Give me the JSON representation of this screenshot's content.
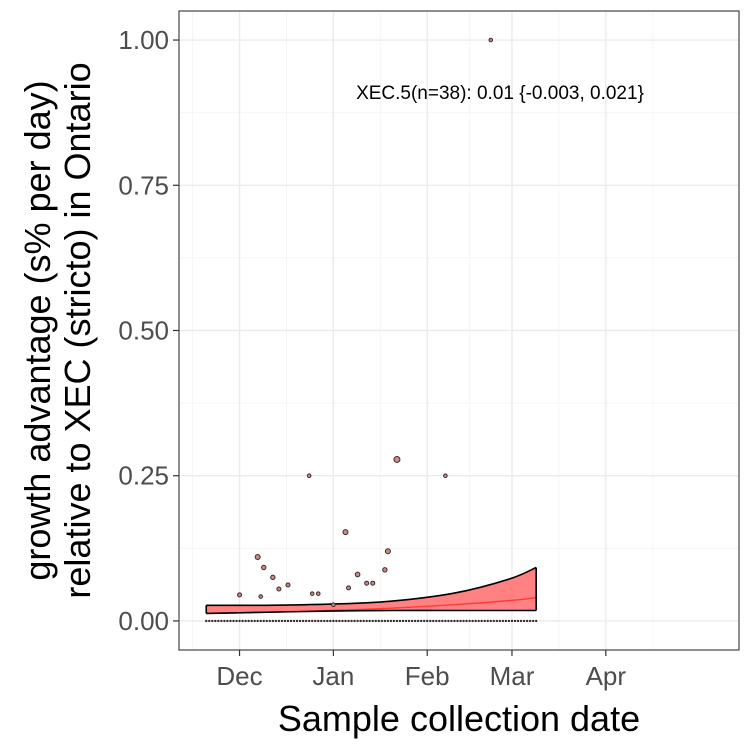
{
  "chart_data": {
    "type": "scatter",
    "xlabel": "Sample collection date",
    "ylabel_line1": "growth advantage (s% per day)",
    "ylabel_line2": "relative to XEC (stricto) in Ontario",
    "x_start_date": "2024-11-01",
    "xlim": [
      "2024-11-11",
      "2025-05-15"
    ],
    "ylim": [
      -0.05,
      1.05
    ],
    "x_ticks": [
      {
        "date": "2024-12-01",
        "label": "Dec"
      },
      {
        "date": "2025-01-01",
        "label": "Jan"
      },
      {
        "date": "2025-02-01",
        "label": "Feb"
      },
      {
        "date": "2025-03-01",
        "label": "Mar"
      },
      {
        "date": "2025-04-01",
        "label": "Apr"
      }
    ],
    "y_ticks": [
      0.0,
      0.25,
      0.5,
      0.75,
      1.0
    ],
    "y_tick_labels": [
      "0.00",
      "0.25",
      "0.50",
      "0.75",
      "1.00"
    ],
    "annotation": "XEC.5(n=38): 0.01 {-0.003, 0.021}",
    "grid": true,
    "colors": {
      "ribbon": "#ff6b6b",
      "fit_line": "#ff3b3b",
      "bound_line": "#000000",
      "point": "#3a2a2a",
      "grid_major": "#ebebeb",
      "grid_minor": "#f5f5f5"
    },
    "fit": {
      "x_dates": [
        "2024-11-20",
        "2024-12-10",
        "2024-12-31",
        "2025-01-20",
        "2025-02-10",
        "2025-02-28",
        "2025-03-09"
      ],
      "center": [
        0.013,
        0.015,
        0.018,
        0.022,
        0.028,
        0.035,
        0.04
      ],
      "upper": [
        0.027,
        0.027,
        0.029,
        0.034,
        0.048,
        0.072,
        0.092
      ],
      "lower": [
        0.013,
        0.015,
        0.017,
        0.018,
        0.018,
        0.018,
        0.018
      ]
    },
    "points": [
      {
        "date": "2024-12-01",
        "y": 0.045,
        "size": 2.0
      },
      {
        "date": "2024-12-07",
        "y": 0.11,
        "size": 2.5
      },
      {
        "date": "2024-12-09",
        "y": 0.092,
        "size": 2.2
      },
      {
        "date": "2024-12-12",
        "y": 0.075,
        "size": 2.2
      },
      {
        "date": "2024-12-14",
        "y": 0.055,
        "size": 2.0
      },
      {
        "date": "2024-12-08",
        "y": 0.042,
        "size": 1.8
      },
      {
        "date": "2024-12-17",
        "y": 0.062,
        "size": 2.0
      },
      {
        "date": "2024-12-24",
        "y": 0.25,
        "size": 1.8
      },
      {
        "date": "2024-12-25",
        "y": 0.047,
        "size": 1.8
      },
      {
        "date": "2024-12-27",
        "y": 0.047,
        "size": 1.8
      },
      {
        "date": "2025-01-01",
        "y": 0.028,
        "size": 1.8
      },
      {
        "date": "2025-01-05",
        "y": 0.153,
        "size": 2.5
      },
      {
        "date": "2025-01-06",
        "y": 0.057,
        "size": 2.0
      },
      {
        "date": "2025-01-09",
        "y": 0.08,
        "size": 2.3
      },
      {
        "date": "2025-01-12",
        "y": 0.065,
        "size": 2.0
      },
      {
        "date": "2025-01-14",
        "y": 0.065,
        "size": 2.0
      },
      {
        "date": "2025-01-18",
        "y": 0.088,
        "size": 2.2
      },
      {
        "date": "2025-01-19",
        "y": 0.12,
        "size": 2.5
      },
      {
        "date": "2025-01-22",
        "y": 0.278,
        "size": 3.0
      },
      {
        "date": "2025-02-07",
        "y": 0.25,
        "size": 1.8
      },
      {
        "date": "2025-02-22",
        "y": 1.0,
        "size": 1.8
      }
    ],
    "zero_points": {
      "start": "2024-11-20",
      "end": "2025-03-09",
      "step_days": 1,
      "size": 1.2
    }
  }
}
